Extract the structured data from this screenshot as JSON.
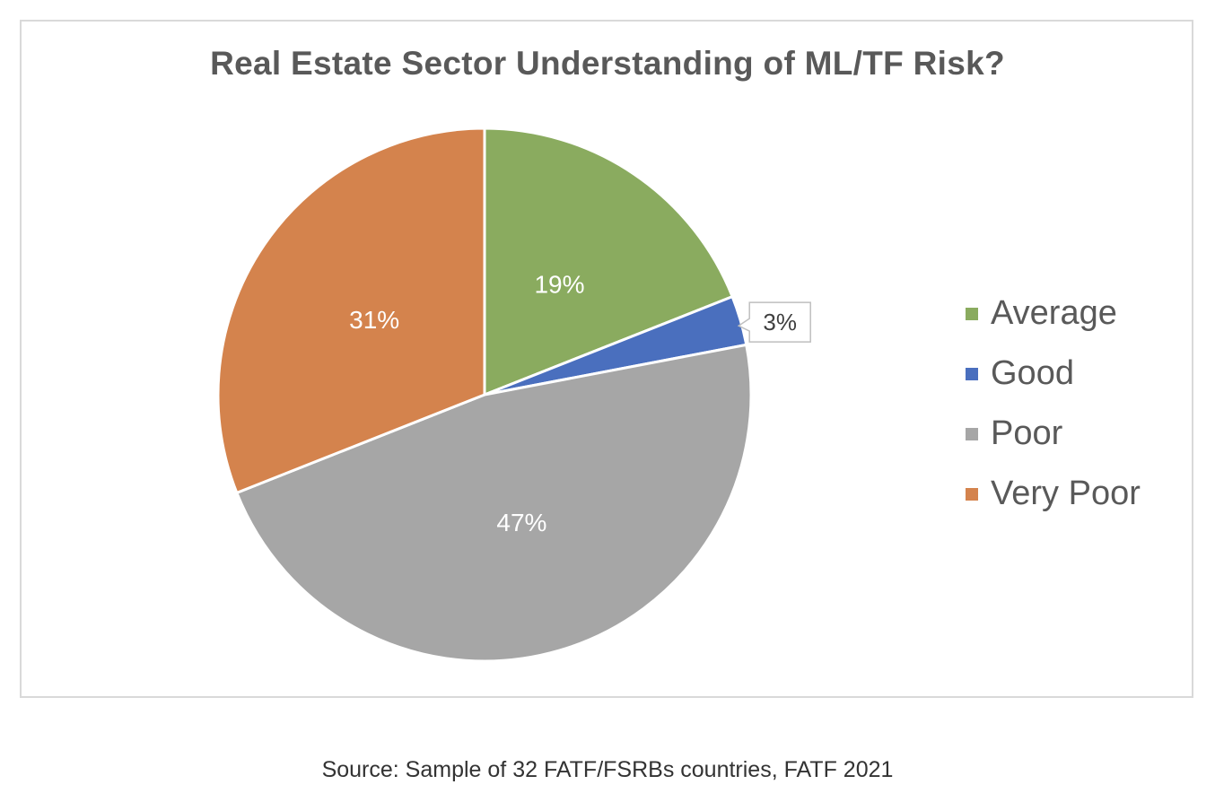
{
  "chart_data": {
    "type": "pie",
    "title": "Real Estate Sector Understanding of ML/TF Risk?",
    "categories": [
      "Average",
      "Good",
      "Poor",
      "Very Poor"
    ],
    "values": [
      19,
      3,
      47,
      31
    ],
    "data_labels": [
      "19%",
      "3%",
      "47%",
      "31%"
    ],
    "colors": [
      "#8aab5f",
      "#4a6fbe",
      "#a6a6a6",
      "#d4834d"
    ],
    "start_angle_deg": 0,
    "direction": "clockwise",
    "legend_placement": "right"
  },
  "caption": "Source: Sample of 32 FATF/FSRBs countries, FATF 2021"
}
